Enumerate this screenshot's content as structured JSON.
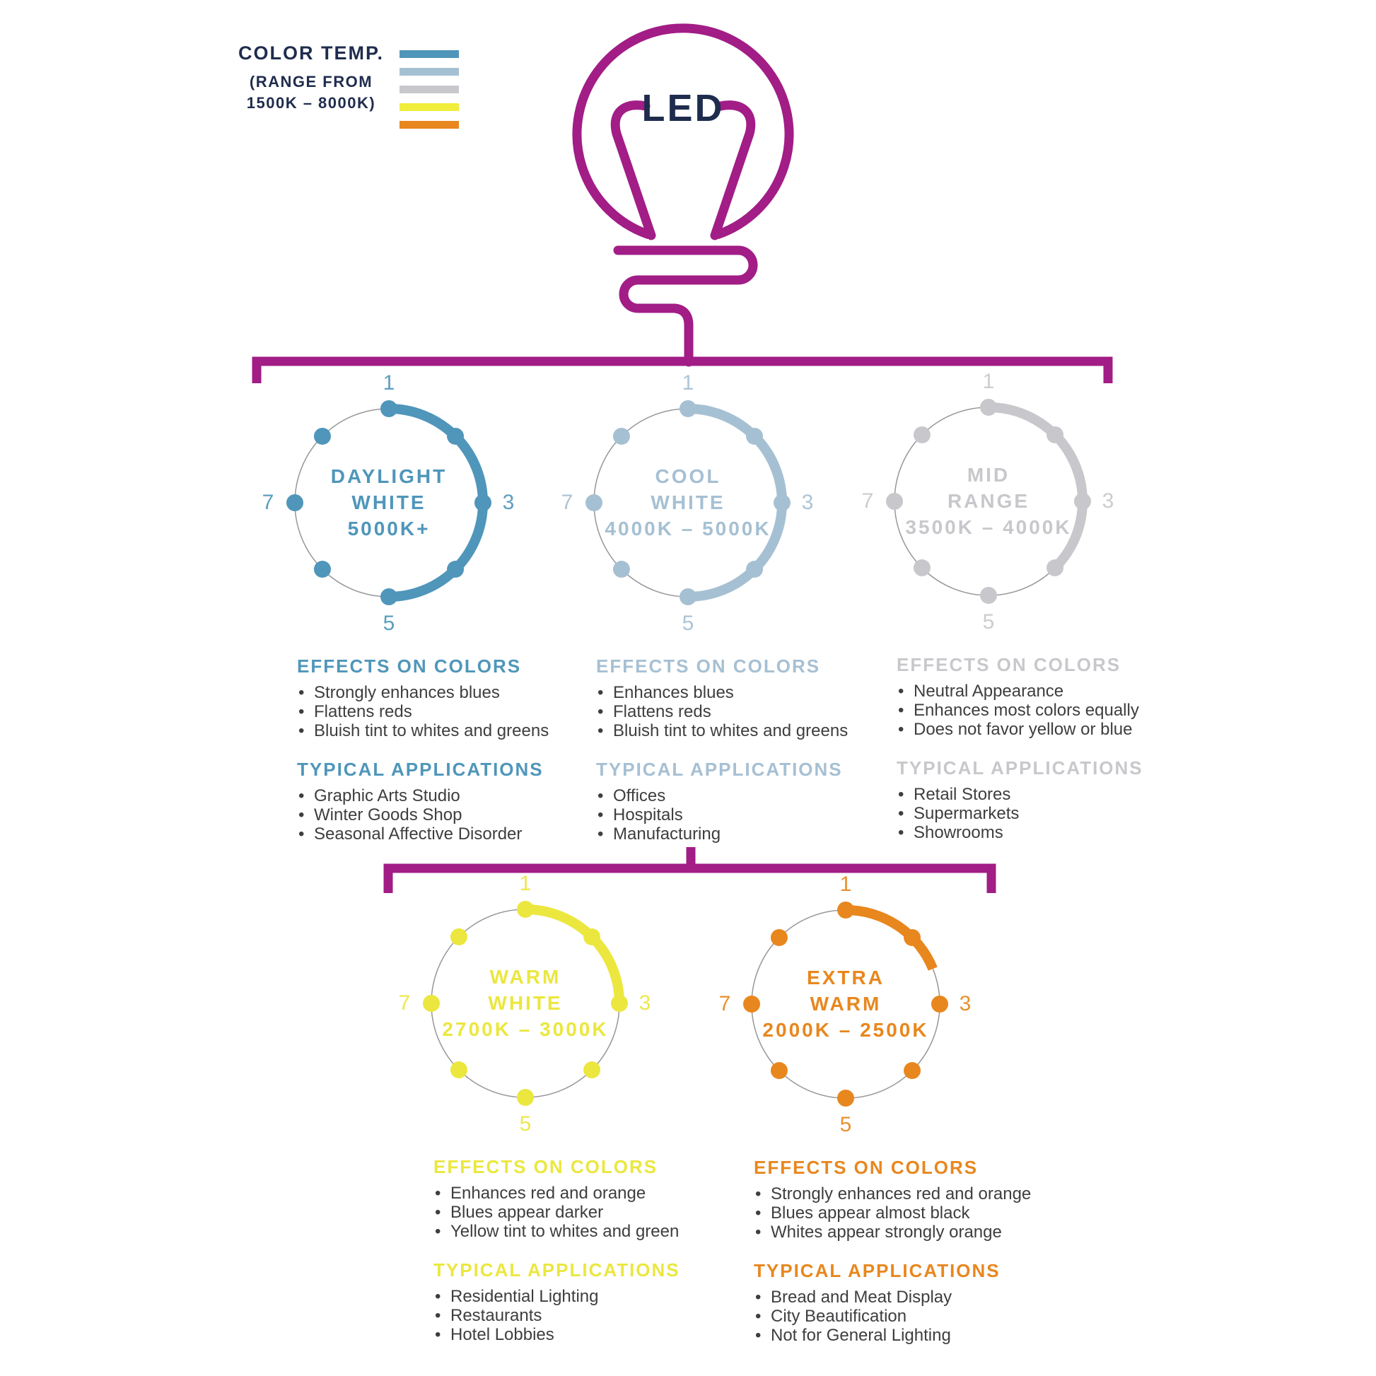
{
  "legend": {
    "title": "COLOR TEMP.",
    "subtitle_line1": "(RANGE FROM",
    "subtitle_line2": "1500K – 8000K)",
    "bar_colors": [
      "#4f96ba",
      "#a6c0d3",
      "#c8c8cc",
      "#f0ed3b",
      "#e8871e"
    ]
  },
  "bulb": {
    "label": "LED"
  },
  "ticks": {
    "top": "1",
    "right": "3",
    "bottom": "5",
    "left": "7"
  },
  "colors": {
    "magenta": "#a21d86",
    "navy": "#1f2c4e",
    "body_text": "#3e3e40",
    "circle_outline": "#97979a"
  },
  "cards": [
    {
      "id": "daylight-white",
      "color": "#4f96ba",
      "arc_deg": 180,
      "title_lines": [
        "DAYLIGHT",
        "WHITE",
        "5000K+"
      ],
      "effects_heading": "EFFECTS ON COLORS",
      "effects": [
        "Strongly enhances blues",
        "Flattens reds",
        "Bluish tint to whites and greens"
      ],
      "applications_heading": "TYPICAL APPLICATIONS",
      "applications": [
        "Graphic Arts Studio",
        "Winter Goods Shop",
        "Seasonal Affective Disorder"
      ]
    },
    {
      "id": "cool-white",
      "color": "#a6c0d3",
      "arc_deg": 180,
      "title_lines": [
        "COOL",
        "WHITE",
        "4000K – 5000K"
      ],
      "effects_heading": "EFFECTS ON COLORS",
      "effects": [
        "Enhances blues",
        "Flattens reds",
        "Bluish tint to whites and greens"
      ],
      "applications_heading": "TYPICAL APPLICATIONS",
      "applications": [
        "Offices",
        "Hospitals",
        "Manufacturing"
      ]
    },
    {
      "id": "mid-range",
      "color": "#c8c8cc",
      "arc_deg": 135,
      "title_lines": [
        "MID",
        "RANGE",
        "3500K – 4000K"
      ],
      "effects_heading": "EFFECTS ON COLORS",
      "effects": [
        "Neutral Appearance",
        "Enhances most colors equally",
        "Does not favor yellow or blue"
      ],
      "applications_heading": "TYPICAL APPLICATIONS",
      "applications": [
        "Retail Stores",
        "Supermarkets",
        "Showrooms"
      ]
    },
    {
      "id": "warm-white",
      "color": "#ebe73f",
      "arc_deg": 90,
      "title_lines": [
        "WARM",
        "WHITE",
        "2700K – 3000K"
      ],
      "effects_heading": "EFFECTS ON COLORS",
      "effects": [
        "Enhances red and orange",
        "Blues appear darker",
        "Yellow tint to whites and green"
      ],
      "applications_heading": "TYPICAL APPLICATIONS",
      "applications": [
        "Residential Lighting",
        "Restaurants",
        "Hotel Lobbies"
      ]
    },
    {
      "id": "extra-warm",
      "color": "#e8871e",
      "arc_deg": 68,
      "title_lines": [
        "EXTRA",
        "WARM",
        "2000K – 2500K"
      ],
      "effects_heading": "EFFECTS ON COLORS",
      "effects": [
        "Strongly enhances red and orange",
        "Blues appear almost black",
        "Whites appear strongly orange"
      ],
      "applications_heading": "TYPICAL APPLICATIONS",
      "applications": [
        "Bread and Meat Display",
        "City Beautification",
        "Not for General Lighting"
      ]
    }
  ]
}
